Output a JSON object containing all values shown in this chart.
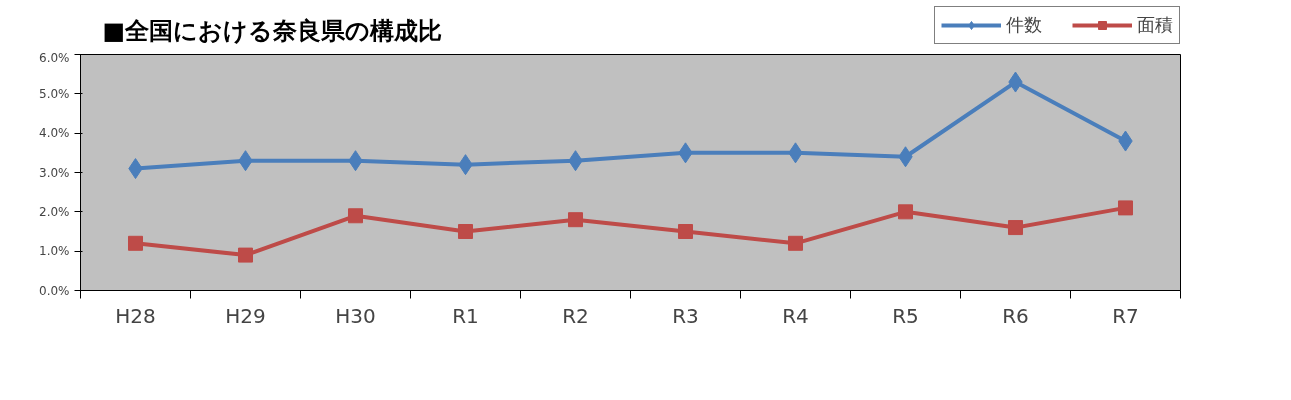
{
  "chart_data": {
    "type": "line",
    "title": "■全国における奈良県の構成比",
    "categories": [
      "H28",
      "H29",
      "H30",
      "R1",
      "R2",
      "R3",
      "R4",
      "R5",
      "R6",
      "R7"
    ],
    "series": [
      {
        "name": "件数",
        "color": "#4a7ebb",
        "marker": "diamond",
        "values": [
          3.1,
          3.3,
          3.3,
          3.2,
          3.3,
          3.5,
          3.5,
          3.4,
          5.3,
          3.8
        ]
      },
      {
        "name": "面積",
        "color": "#be4b48",
        "marker": "square",
        "values": [
          1.2,
          0.9,
          1.9,
          1.5,
          1.8,
          1.5,
          1.2,
          2.0,
          1.6,
          2.1
        ]
      }
    ],
    "ylim": [
      0,
      6
    ],
    "yticks": [
      {
        "value": 0,
        "label": "0.0%"
      },
      {
        "value": 1,
        "label": "1.0%"
      },
      {
        "value": 2,
        "label": "2.0%"
      },
      {
        "value": 3,
        "label": "3.0%"
      },
      {
        "value": 4,
        "label": "4.0%"
      },
      {
        "value": 5,
        "label": "5.0%"
      },
      {
        "value": 6,
        "label": "6.0%"
      }
    ],
    "grid": false,
    "legend": "top right",
    "line_style": "solid"
  }
}
